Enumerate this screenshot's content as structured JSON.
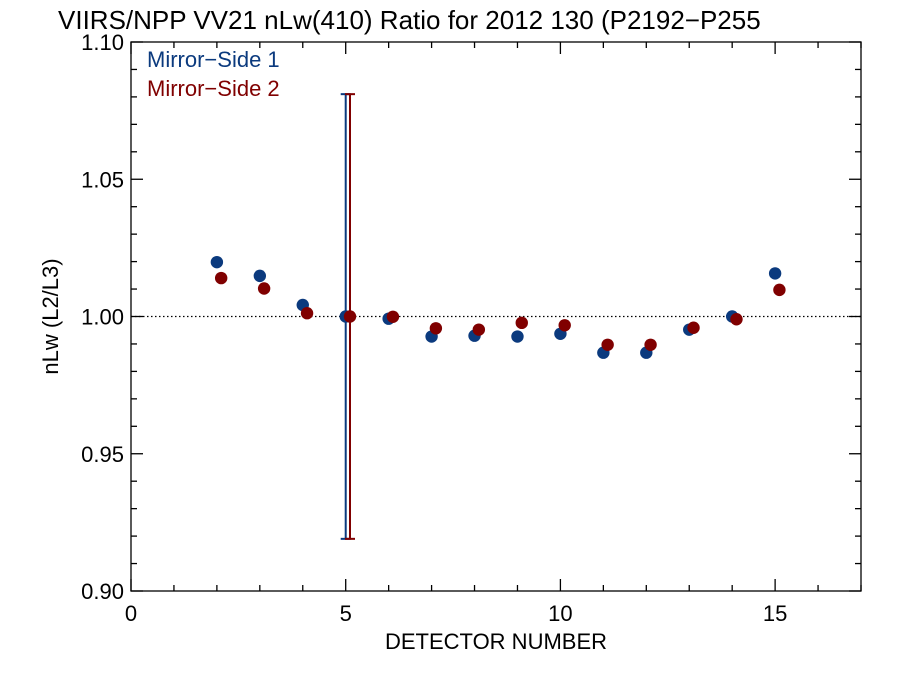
{
  "chart_data": {
    "type": "scatter",
    "title": "VIIRS/NPP VV21 nLw(410) Ratio for 2012 130 (P2192−P255",
    "xlabel": "DETECTOR NUMBER",
    "ylabel": "nLw (L2/L3)",
    "xlim": [
      0,
      17
    ],
    "ylim": [
      0.9,
      1.1
    ],
    "xticks": [
      0,
      5,
      10,
      15
    ],
    "xtick_labels": [
      "0",
      "5",
      "10",
      "15"
    ],
    "yticks": [
      0.9,
      0.95,
      1.0,
      1.05,
      1.1
    ],
    "ytick_labels": [
      "0.90",
      "0.95",
      "1.00",
      "1.05",
      "1.10"
    ],
    "reference_line": 1.0,
    "legend_position": "top-left",
    "series": [
      {
        "name": "Mirror−Side 1",
        "color": "#0b3a7e",
        "x": [
          2,
          3,
          4,
          5,
          6,
          7,
          8,
          9,
          10,
          11,
          12,
          13,
          14,
          15
        ],
        "y": [
          1.0198,
          1.0148,
          1.0042,
          1.0,
          0.9992,
          0.9927,
          0.993,
          0.9927,
          0.9937,
          0.9868,
          0.9868,
          0.9952,
          1.0,
          1.0157
        ],
        "error_bars": [
          {
            "x": 5,
            "low": 0.919,
            "high": 1.081
          }
        ]
      },
      {
        "name": "Mirror−Side 2",
        "color": "#800000",
        "x": [
          2.1,
          3.1,
          4.1,
          5.1,
          6.1,
          7.1,
          8.1,
          9.1,
          10.1,
          11.1,
          12.1,
          13.1,
          14.1,
          15.1
        ],
        "y": [
          1.014,
          1.0102,
          1.0012,
          1.0,
          0.9999,
          0.9957,
          0.9952,
          0.9977,
          0.9968,
          0.9897,
          0.9897,
          0.9959,
          0.999,
          1.0097
        ],
        "error_bars": [
          {
            "x": 5.1,
            "low": 0.919,
            "high": 1.081
          }
        ]
      }
    ]
  }
}
